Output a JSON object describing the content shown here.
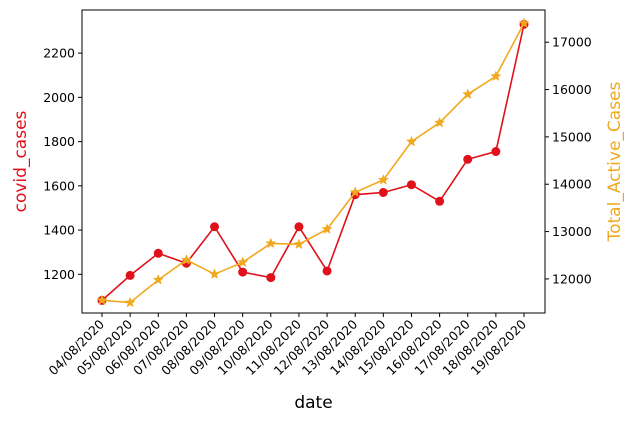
{
  "chart_data": {
    "type": "line",
    "xlabel": "date",
    "categories": [
      "04/08/2020",
      "05/08/2020",
      "06/08/2020",
      "07/08/2020",
      "08/08/2020",
      "09/08/2020",
      "10/08/2020",
      "11/08/2020",
      "12/08/2020",
      "13/08/2020",
      "14/08/2020",
      "15/08/2020",
      "16/08/2020",
      "17/08/2020",
      "18/08/2020",
      "19/08/2020"
    ],
    "series": [
      {
        "name": "covid_cases",
        "axis": "left",
        "color": "#e0111a",
        "marker": "circle",
        "values": [
          1082,
          1195,
          1295,
          1250,
          1415,
          1210,
          1185,
          1415,
          1215,
          1560,
          1570,
          1605,
          1530,
          1720,
          1755,
          2330
        ]
      },
      {
        "name": "Total_Active_Cases",
        "axis": "right",
        "color": "#f0a91e",
        "marker": "star",
        "values": [
          11550,
          11500,
          11980,
          12400,
          12100,
          12350,
          12750,
          12730,
          13050,
          13830,
          14090,
          14900,
          15300,
          15900,
          16280,
          17400
        ]
      }
    ],
    "y_left": {
      "label": "covid_cases",
      "color": "#e0111a",
      "ylim": [
        1025,
        2395
      ],
      "ticks": [
        1200,
        1400,
        1600,
        1800,
        2000,
        2200
      ]
    },
    "y_right": {
      "label": "Total_Active_Cases",
      "color": "#f0a91e",
      "ylim": [
        11280,
        17680
      ],
      "ticks": [
        12000,
        13000,
        14000,
        15000,
        16000,
        17000
      ]
    },
    "grid": false,
    "legend": "none"
  }
}
